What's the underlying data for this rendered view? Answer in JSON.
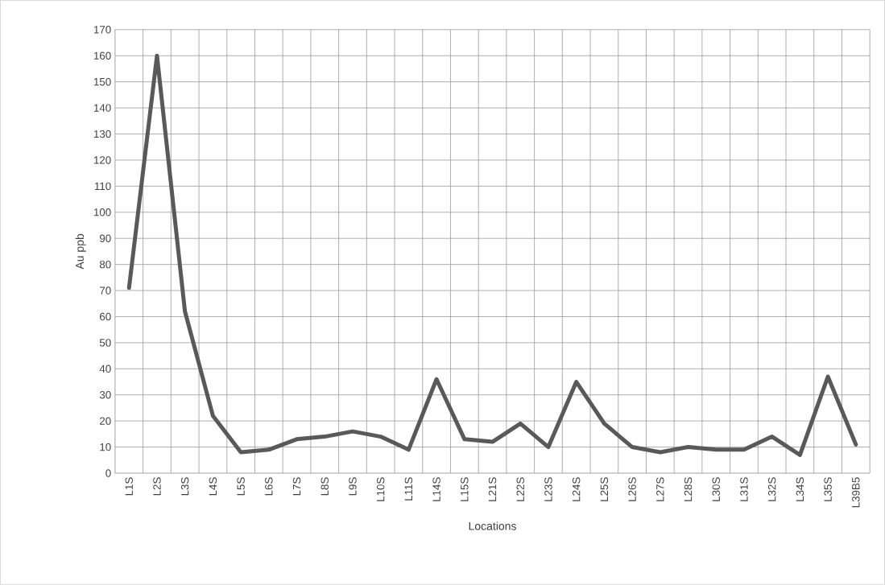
{
  "chart_data": {
    "type": "line",
    "xlabel": "Locations",
    "ylabel": "Au ppb",
    "categories": [
      "L1S",
      "L2S",
      "L3S",
      "L4S",
      "L5S",
      "L6S",
      "L7S",
      "L8S",
      "L9S",
      "L10S",
      "L11S",
      "L14S",
      "L15S",
      "L21S",
      "L22S",
      "L23S",
      "L24S",
      "L25S",
      "L26S",
      "L27S",
      "L28S",
      "L30S",
      "L31S",
      "L32S",
      "L34S",
      "L35S",
      "L39B5"
    ],
    "series": [
      {
        "color": "#595959",
        "values": [
          71,
          160,
          62,
          22,
          8,
          9,
          13,
          14,
          16,
          14,
          9,
          36,
          13,
          12,
          19,
          10,
          35,
          19,
          10,
          8,
          10,
          9,
          9,
          14,
          7,
          37,
          11
        ]
      }
    ],
    "ylim": [
      0,
      170
    ],
    "yticks": [
      0,
      10,
      20,
      30,
      40,
      50,
      60,
      70,
      80,
      90,
      100,
      110,
      120,
      130,
      140,
      150,
      160,
      170
    ],
    "grid": true,
    "marker": "none",
    "line_style": "solid"
  }
}
